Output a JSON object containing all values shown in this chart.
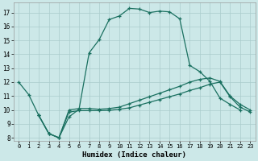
{
  "xlabel": "Humidex (Indice chaleur)",
  "bg_color": "#cce8e8",
  "grid_color": "#aacccc",
  "line_color": "#1a7060",
  "xlim": [
    -0.5,
    23.5
  ],
  "ylim": [
    7.8,
    17.7
  ],
  "xticks": [
    0,
    1,
    2,
    3,
    4,
    5,
    6,
    7,
    8,
    9,
    10,
    11,
    12,
    13,
    14,
    15,
    16,
    17,
    18,
    19,
    20,
    21,
    22,
    23
  ],
  "yticks": [
    8,
    9,
    10,
    11,
    12,
    13,
    14,
    15,
    16,
    17
  ],
  "curves": [
    {
      "x": [
        0,
        1,
        2,
        3,
        4,
        5,
        6,
        7,
        8,
        9,
        10,
        11,
        12,
        13,
        14,
        15,
        16,
        17,
        18,
        19,
        20,
        21,
        22
      ],
      "y": [
        12.0,
        11.1,
        9.6,
        8.3,
        8.0,
        9.5,
        10.05,
        14.1,
        15.05,
        16.5,
        16.75,
        17.3,
        17.25,
        17.0,
        17.1,
        17.05,
        16.55,
        13.2,
        12.75,
        12.05,
        10.85,
        10.4,
        10.0
      ]
    },
    {
      "x": [
        2,
        3,
        4,
        5,
        6,
        7,
        8,
        9,
        10,
        11,
        12,
        13,
        14,
        15,
        16,
        17,
        18,
        19,
        20,
        21,
        22,
        23
      ],
      "y": [
        9.6,
        8.3,
        8.0,
        9.85,
        9.95,
        9.95,
        9.95,
        9.97,
        10.05,
        10.15,
        10.35,
        10.55,
        10.75,
        10.95,
        11.15,
        11.4,
        11.6,
        11.85,
        12.0,
        10.95,
        10.2,
        9.85
      ]
    },
    {
      "x": [
        2,
        3,
        4,
        5,
        6,
        7,
        8,
        9,
        10,
        11,
        12,
        13,
        14,
        15,
        16,
        17,
        18,
        19,
        20,
        21,
        22,
        23
      ],
      "y": [
        9.6,
        8.3,
        8.0,
        10.0,
        10.1,
        10.1,
        10.05,
        10.1,
        10.2,
        10.45,
        10.7,
        10.95,
        11.2,
        11.45,
        11.7,
        12.0,
        12.2,
        12.3,
        12.05,
        11.0,
        10.4,
        10.0
      ]
    }
  ]
}
